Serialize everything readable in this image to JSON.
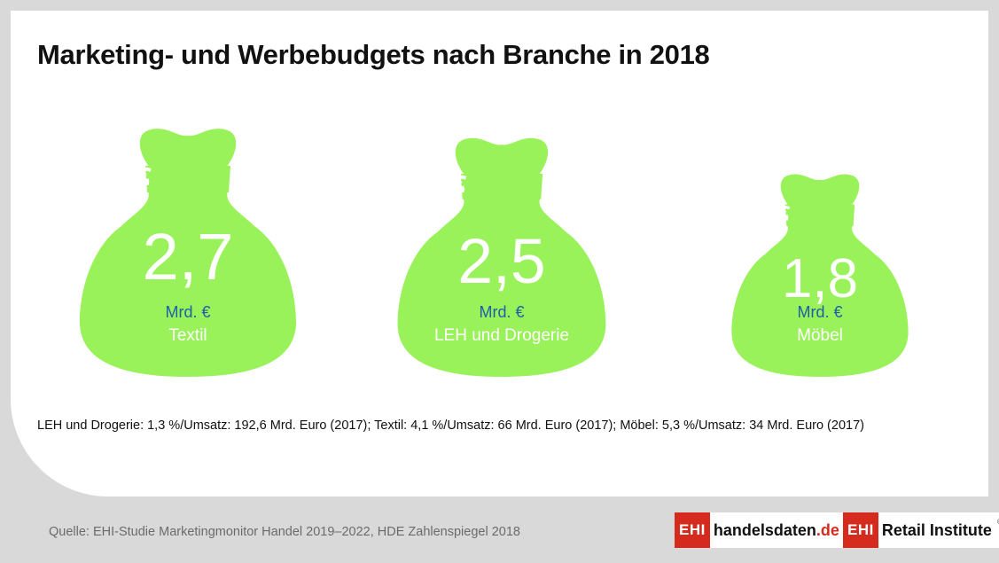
{
  "header": {
    "title": "Marketing- und Werbebudgets nach Branche in 2018"
  },
  "chart_data": {
    "type": "bar",
    "categories": [
      "Textil",
      "LEH und Drogerie",
      "Möbel"
    ],
    "values": [
      2.7,
      2.5,
      1.8
    ],
    "value_labels": [
      "2,7",
      "2,5",
      "1,8"
    ],
    "unit": "Mrd. €",
    "title": "Marketing- und Werbebudgets nach Branche in 2018",
    "bag_color": "#99f25a",
    "value_color": "#ffffff",
    "unit_color": "#1e5fa8",
    "category_color": "#ffffff"
  },
  "note": "LEH und Drogerie: 1,3 %/Umsatz: 192,6 Mrd. Euro (2017); Textil: 4,1 %/Umsatz: 66 Mrd. Euro (2017); Möbel: 5,3 %/Umsatz: 34 Mrd. Euro (2017)",
  "footer": {
    "source": "Quelle: EHI-Studie Marketingmonitor Handel 2019–2022, HDE Zahlenspiegel 2018",
    "logo1": {
      "mark": "EHI",
      "text_main": "handelsdaten",
      "text_tld": ".de"
    },
    "logo2": {
      "mark": "EHI",
      "text": "Retail Institute",
      "reg": "®"
    }
  }
}
